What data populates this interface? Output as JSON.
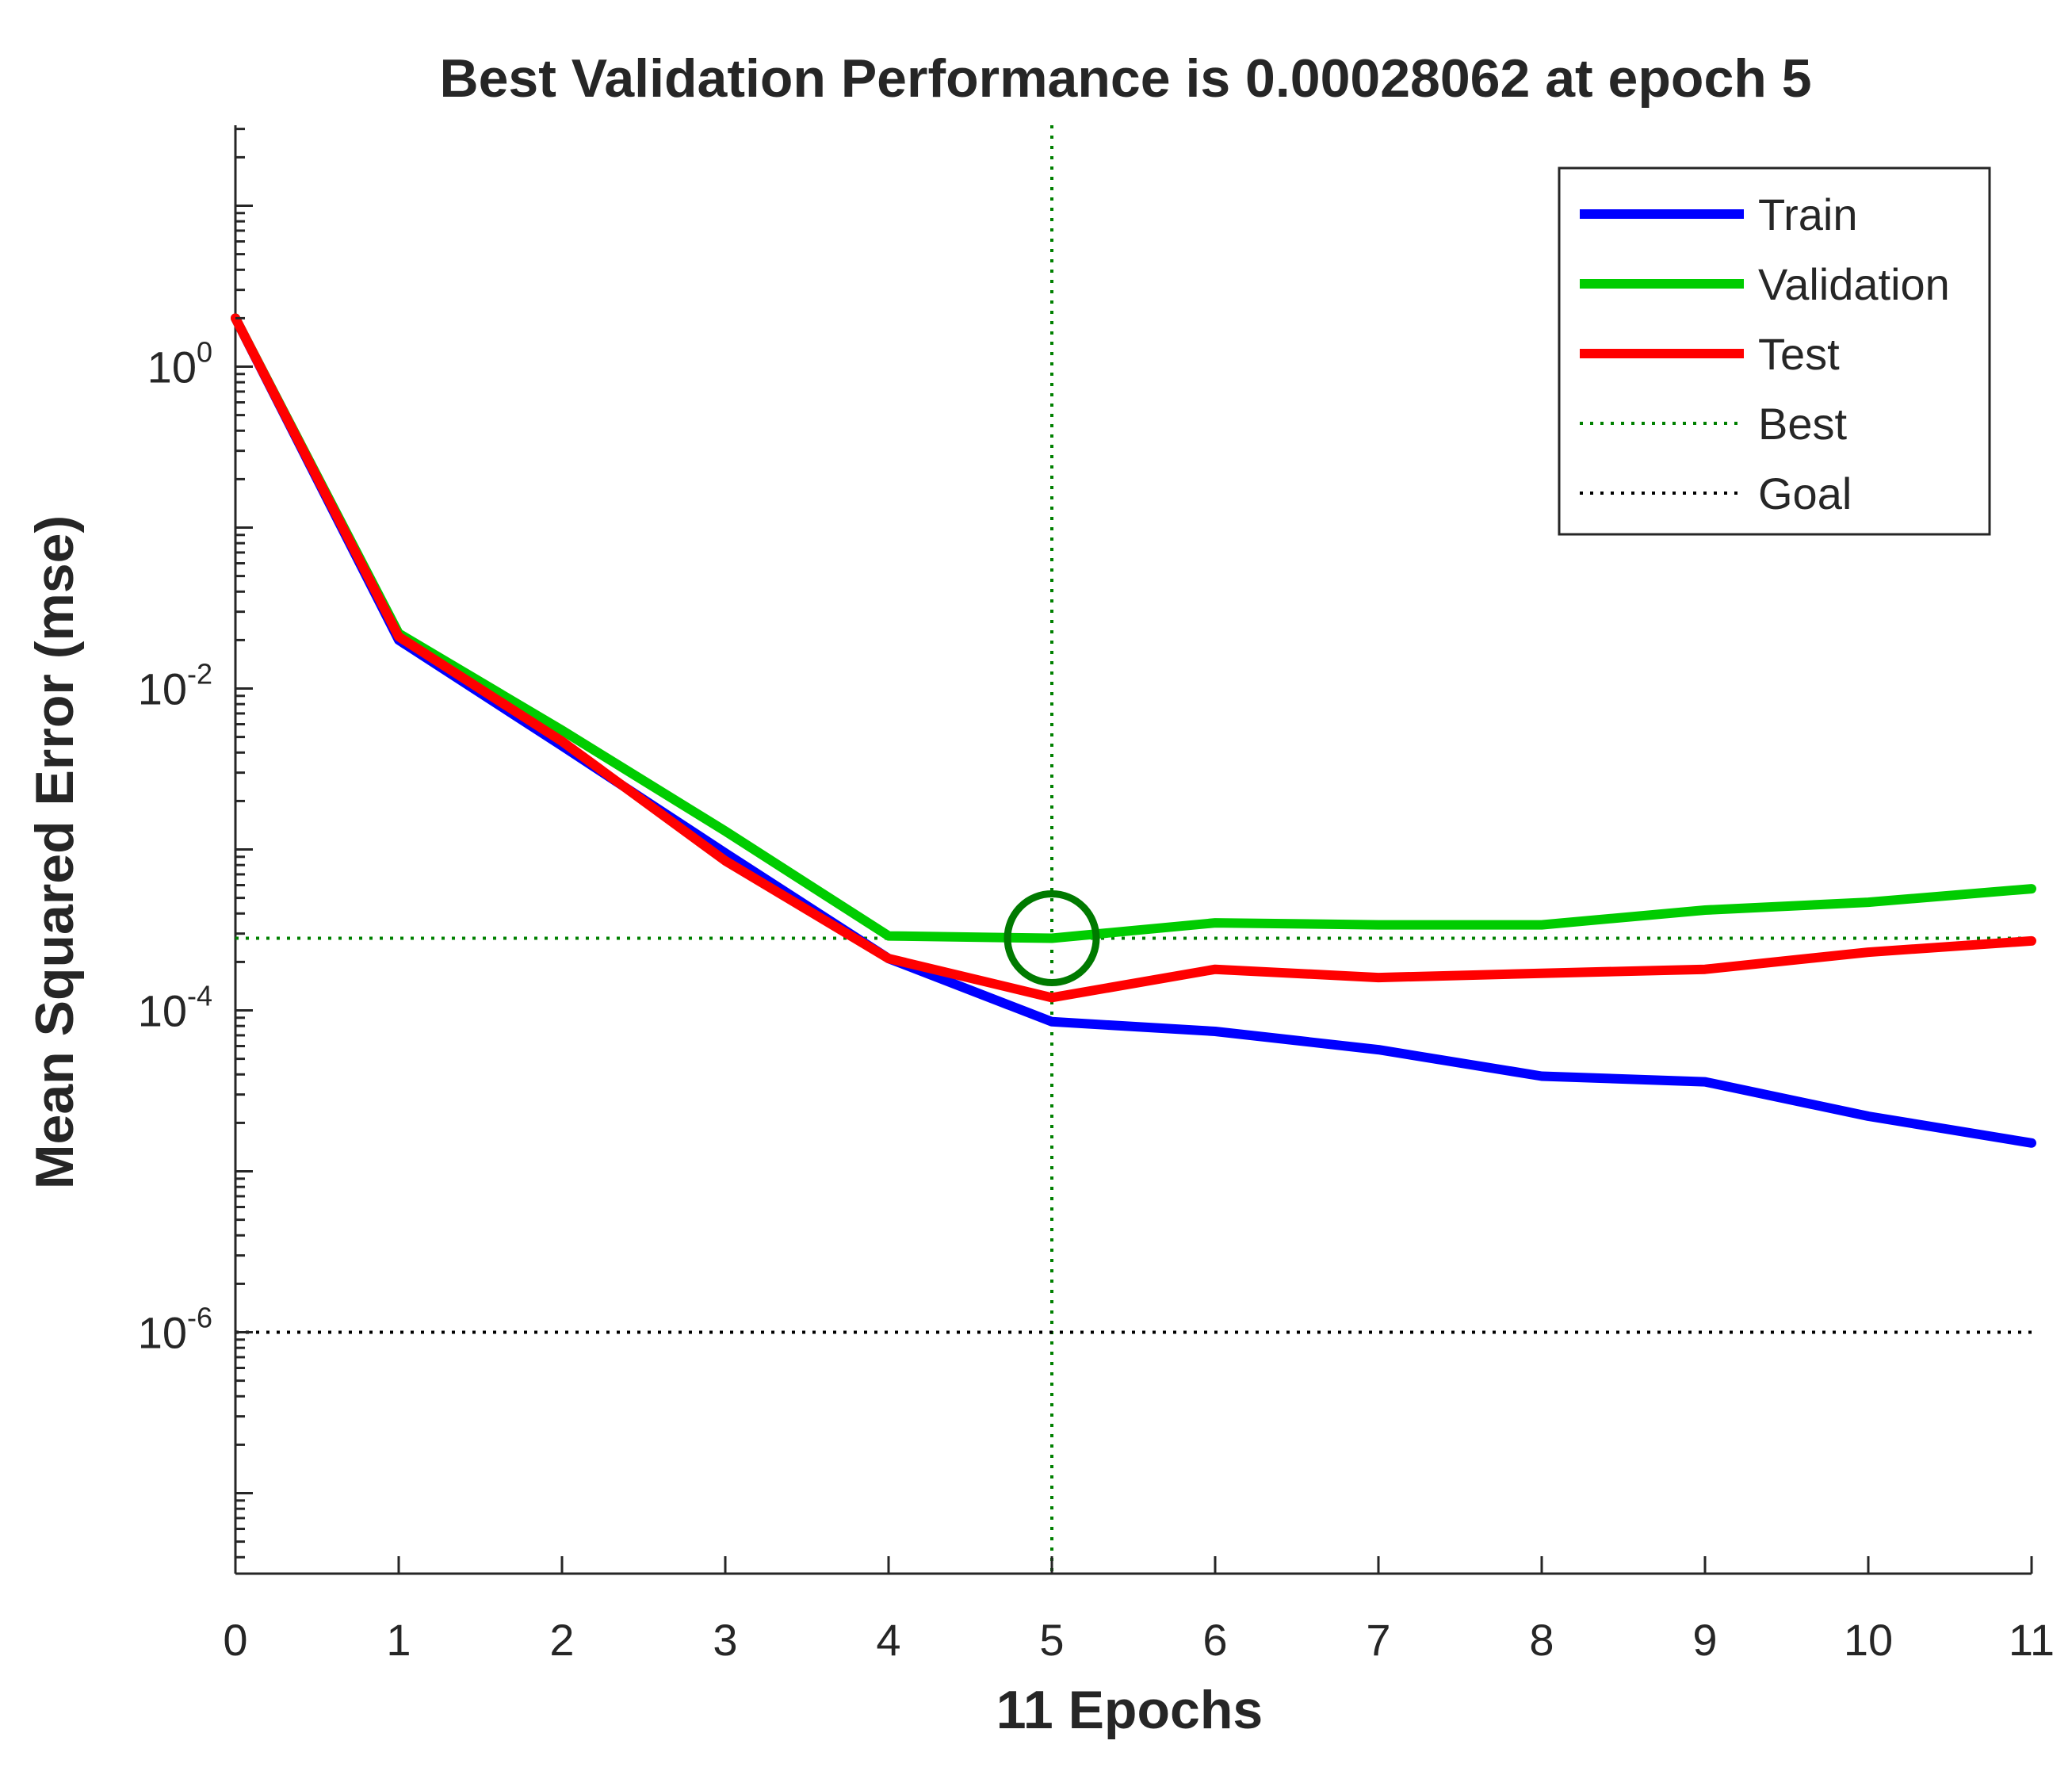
{
  "chart_data": {
    "type": "line",
    "title": "Best Validation Performance is 0.00028062 at epoch 5",
    "xlabel": "11 Epochs",
    "ylabel": "Mean Squared Error  (mse)",
    "yscale": "log",
    "xlim": [
      0,
      11
    ],
    "ylim_log10": [
      -7.5,
      1.5
    ],
    "x_ticks": [
      "0",
      "1",
      "2",
      "3",
      "4",
      "5",
      "6",
      "7",
      "8",
      "9",
      "10",
      "11"
    ],
    "y_ticks": [
      {
        "base": "10",
        "exp": "0",
        "value": 1
      },
      {
        "base": "10",
        "exp": "-2",
        "value": 0.01
      },
      {
        "base": "10",
        "exp": "-4",
        "value": 0.0001
      },
      {
        "base": "10",
        "exp": "-6",
        "value": 1e-06
      }
    ],
    "x": [
      0,
      1,
      2,
      3,
      4,
      5,
      6,
      7,
      8,
      9,
      10,
      11
    ],
    "series": [
      {
        "name": "Train",
        "color": "#0000ff",
        "values": [
          2.0,
          0.02,
          0.0044,
          0.00095,
          0.00021,
          8.5e-05,
          7.4e-05,
          5.7e-05,
          3.9e-05,
          3.6e-05,
          2.2e-05,
          1.5e-05
        ]
      },
      {
        "name": "Validation",
        "color": "#00cc00",
        "values": [
          2.0,
          0.022,
          0.0055,
          0.0013,
          0.00029,
          0.00028062,
          0.00035,
          0.00034,
          0.00034,
          0.00042,
          0.00047,
          0.00057
        ]
      },
      {
        "name": "Test",
        "color": "#ff0000",
        "values": [
          2.0,
          0.021,
          0.0047,
          0.00085,
          0.00021,
          0.00012,
          0.00018,
          0.00016,
          0.00017,
          0.00018,
          0.00023,
          0.00027
        ]
      }
    ],
    "best": {
      "label": "Best",
      "epoch": 5,
      "value": 0.00028062,
      "color": "#008000"
    },
    "goal": {
      "label": "Goal",
      "value": 1e-06,
      "color": "#000000"
    },
    "legend_position": "top-right"
  }
}
